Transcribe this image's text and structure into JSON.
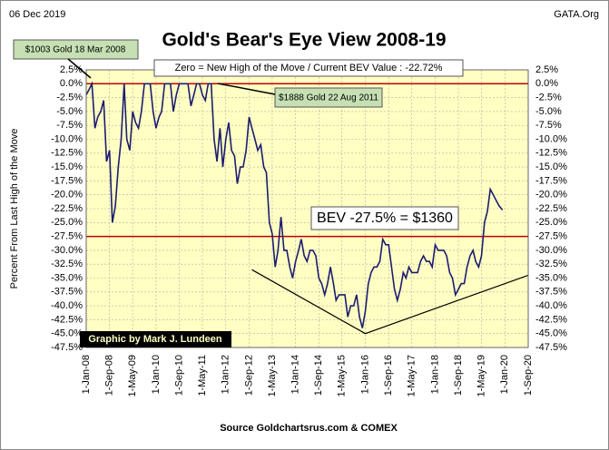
{
  "chart_data": {
    "type": "line",
    "title": "Gold's Bear's Eye View 2008-19",
    "date": "06 Dec 2019",
    "site": "GATA.Org",
    "y_label": "Percent  From Last High of the Move",
    "source": "Source Goldchartsrus.com & COMEX",
    "annotations": [
      "$1003 Gold 18 Mar 2008",
      "Zero = New High of the Move / Current  BEV Value : -22.72%",
      "$1888 Gold 22 Aug 2011",
      "BEV -27.5% = $1360",
      "Graphic by Mark J. Lundeen"
    ],
    "x": [
      "2008-01-01",
      "2008-02-01",
      "2008-03-01",
      "2008-04-01",
      "2008-05-01",
      "2008-06-01",
      "2008-07-01",
      "2008-08-01",
      "2008-09-01",
      "2008-10-01",
      "2008-11-01",
      "2008-12-01",
      "2009-01-01",
      "2009-02-01",
      "2009-03-01",
      "2009-04-01",
      "2009-05-01",
      "2009-06-01",
      "2009-07-01",
      "2009-08-01",
      "2009-09-01",
      "2009-10-01",
      "2009-11-01",
      "2009-12-01",
      "2010-01-01",
      "2010-02-01",
      "2010-03-01",
      "2010-04-01",
      "2010-05-01",
      "2010-06-01",
      "2010-07-01",
      "2010-08-01",
      "2010-09-01",
      "2010-10-01",
      "2010-11-01",
      "2010-12-01",
      "2011-01-01",
      "2011-02-01",
      "2011-03-01",
      "2011-04-01",
      "2011-05-01",
      "2011-06-01",
      "2011-07-01",
      "2011-08-01",
      "2011-09-01",
      "2011-10-01",
      "2011-11-01",
      "2011-12-01",
      "2012-01-01",
      "2012-02-01",
      "2012-03-01",
      "2012-04-01",
      "2012-05-01",
      "2012-06-01",
      "2012-07-01",
      "2012-08-01",
      "2012-09-01",
      "2012-10-01",
      "2012-11-01",
      "2012-12-01",
      "2013-01-01",
      "2013-02-01",
      "2013-03-01",
      "2013-04-01",
      "2013-05-01",
      "2013-06-01",
      "2013-07-01",
      "2013-08-01",
      "2013-09-01",
      "2013-10-01",
      "2013-11-01",
      "2013-12-01",
      "2014-01-01",
      "2014-02-01",
      "2014-03-01",
      "2014-04-01",
      "2014-05-01",
      "2014-06-01",
      "2014-07-01",
      "2014-08-01",
      "2014-09-01",
      "2014-10-01",
      "2014-11-01",
      "2014-12-01",
      "2015-01-01",
      "2015-02-01",
      "2015-03-01",
      "2015-04-01",
      "2015-05-01",
      "2015-06-01",
      "2015-07-01",
      "2015-08-01",
      "2015-09-01",
      "2015-10-01",
      "2015-11-01",
      "2015-12-01",
      "2016-01-01",
      "2016-02-01",
      "2016-03-01",
      "2016-04-01",
      "2016-05-01",
      "2016-06-01",
      "2016-07-01",
      "2016-08-01",
      "2016-09-01",
      "2016-10-01",
      "2016-11-01",
      "2016-12-01",
      "2017-01-01",
      "2017-02-01",
      "2017-03-01",
      "2017-04-01",
      "2017-05-01",
      "2017-06-01",
      "2017-07-01",
      "2017-08-01",
      "2017-09-01",
      "2017-10-01",
      "2017-11-01",
      "2017-12-01",
      "2018-01-01",
      "2018-02-01",
      "2018-03-01",
      "2018-04-01",
      "2018-05-01",
      "2018-06-01",
      "2018-07-01",
      "2018-08-01",
      "2018-09-01",
      "2018-10-01",
      "2018-11-01",
      "2018-12-01",
      "2019-01-01",
      "2019-02-01",
      "2019-03-01",
      "2019-04-01",
      "2019-05-01",
      "2019-06-01",
      "2019-07-01",
      "2019-08-01",
      "2019-09-01",
      "2019-10-01",
      "2019-11-01",
      "2019-12-06"
    ],
    "series": [
      {
        "name": "BEV",
        "color": "#1c1c70",
        "values": [
          -2,
          -1,
          0,
          -8,
          -6,
          -5,
          -3,
          -14,
          -12,
          -25,
          -22,
          -15,
          -10,
          0,
          -10,
          -12,
          -5,
          -7,
          -8,
          -5,
          0,
          0,
          0,
          -5,
          -8,
          -6,
          -5,
          0,
          0,
          0,
          -5,
          -2,
          0,
          0,
          0,
          0,
          -4,
          -2,
          0,
          0,
          -2,
          -3,
          0,
          0,
          -10,
          -14,
          -8,
          -15,
          -10,
          -7,
          -12,
          -13,
          -18,
          -15,
          -15,
          -12,
          -6,
          -8,
          -10,
          -12,
          -11,
          -15,
          -16,
          -25,
          -27,
          -33,
          -30,
          -24,
          -30,
          -30,
          -33,
          -35,
          -32,
          -30,
          -28,
          -31,
          -32,
          -30,
          -30,
          -31,
          -35,
          -36,
          -38,
          -36,
          -33,
          -36,
          -39,
          -38,
          -38,
          -38,
          -42,
          -40,
          -40,
          -38,
          -42,
          -44,
          -41,
          -36,
          -34,
          -33,
          -33,
          -32,
          -28,
          -29,
          -29,
          -33,
          -37,
          -39,
          -37,
          -34,
          -35,
          -33,
          -34,
          -34,
          -34,
          -32,
          -31,
          -32,
          -32,
          -33,
          -29,
          -30,
          -30,
          -30,
          -31,
          -34,
          -35,
          -38,
          -37,
          -36,
          -36,
          -33,
          -31,
          -30,
          -32,
          -33,
          -31,
          -25,
          -23,
          -19,
          -20,
          -21,
          -22,
          -22.72
        ]
      }
    ],
    "reference_lines": {
      "color": "#c00000",
      "values": [
        0,
        -27.5
      ]
    },
    "trend_lines": {
      "color": "#000000",
      "x": [
        "2012-10-01",
        "2016-01-01",
        "2020-09-01"
      ],
      "values": [
        -33.5,
        -45,
        -34.5
      ]
    },
    "xlim": [
      "2008-01-01",
      "2020-09-01"
    ],
    "xticks": [
      {
        "value": "2008-01-01",
        "label": "1-Jan-08"
      },
      {
        "value": "2008-09-01",
        "label": "1-Sep-08"
      },
      {
        "value": "2009-05-01",
        "label": "1-May-09"
      },
      {
        "value": "2010-01-01",
        "label": "1-Jan-10"
      },
      {
        "value": "2010-09-01",
        "label": "1-Sep-10"
      },
      {
        "value": "2011-05-01",
        "label": "1-May-11"
      },
      {
        "value": "2012-01-01",
        "label": "1-Jan-12"
      },
      {
        "value": "2012-09-01",
        "label": "1-Sep-12"
      },
      {
        "value": "2013-05-01",
        "label": "1-May-13"
      },
      {
        "value": "2014-01-01",
        "label": "1-Jan-14"
      },
      {
        "value": "2014-09-01",
        "label": "1-Sep-14"
      },
      {
        "value": "2015-05-01",
        "label": "1-May-15"
      },
      {
        "value": "2016-01-01",
        "label": "1-Jan-16"
      },
      {
        "value": "2016-09-01",
        "label": "1-Sep-16"
      },
      {
        "value": "2017-05-01",
        "label": "1-May-17"
      },
      {
        "value": "2018-01-01",
        "label": "1-Jan-18"
      },
      {
        "value": "2018-09-01",
        "label": "1-Sep-18"
      },
      {
        "value": "2019-05-01",
        "label": "1-May-19"
      },
      {
        "value": "2020-01-01",
        "label": "1-Jan-20"
      },
      {
        "value": "2020-09-01",
        "label": "1-Sep-20"
      }
    ],
    "ylim": [
      -47.5,
      2.5
    ],
    "yticks": [
      {
        "value": 2.5,
        "label": "2.5%"
      },
      {
        "value": 0,
        "label": "0.0%"
      },
      {
        "value": -2.5,
        "label": "-2.5%"
      },
      {
        "value": -5,
        "label": "-5.0%"
      },
      {
        "value": -7.5,
        "label": "-7.5%"
      },
      {
        "value": -10,
        "label": "-10.0%"
      },
      {
        "value": -12.5,
        "label": "-12.5%"
      },
      {
        "value": -15,
        "label": "-15.0%"
      },
      {
        "value": -17.5,
        "label": "-17.5%"
      },
      {
        "value": -20,
        "label": "-20.0%"
      },
      {
        "value": -22.5,
        "label": "-22.5%"
      },
      {
        "value": -25,
        "label": "-25.0%"
      },
      {
        "value": -27.5,
        "label": "-27.5%"
      },
      {
        "value": -30,
        "label": "-30.0%"
      },
      {
        "value": -32.5,
        "label": "-32.5%"
      },
      {
        "value": -35,
        "label": "-35.0%"
      },
      {
        "value": -37.5,
        "label": "-37.5%"
      },
      {
        "value": -40,
        "label": "-40.0%"
      },
      {
        "value": -42.5,
        "label": "-42.5%"
      },
      {
        "value": -45,
        "label": "-45.0%"
      },
      {
        "value": -47.5,
        "label": "-47.5%"
      }
    ],
    "grid": true,
    "plot_background": "#ffffc4"
  }
}
